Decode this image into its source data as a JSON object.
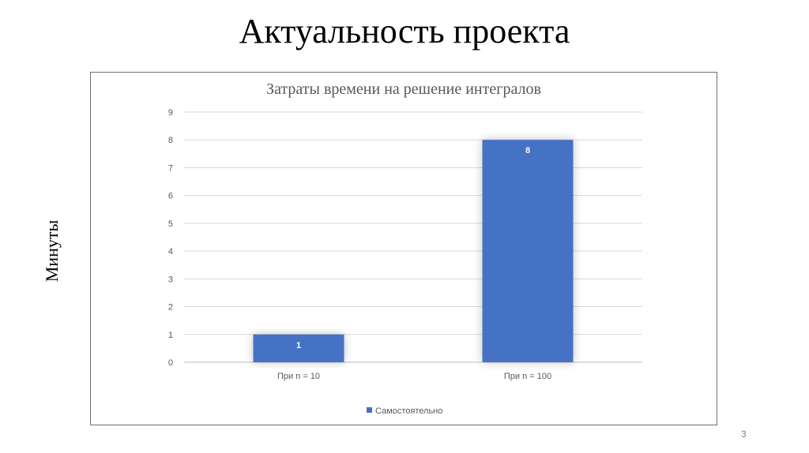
{
  "slide": {
    "title": "Актуальность проекта",
    "page_number": "3"
  },
  "chart_data": {
    "type": "bar",
    "title": "Затраты времени на решение интегралов",
    "ylabel": "Минуты",
    "xlabel": "",
    "categories": [
      "При n = 10",
      "При n = 100"
    ],
    "series": [
      {
        "name": "Самостоятельно",
        "values": [
          1,
          8
        ],
        "color": "#4472C4"
      }
    ],
    "ylim": [
      0,
      9
    ],
    "yticks": [
      0,
      1,
      2,
      3,
      4,
      5,
      6,
      7,
      8,
      9
    ],
    "grid": true,
    "legend": "bottom",
    "data_labels": [
      "1",
      "8"
    ]
  }
}
